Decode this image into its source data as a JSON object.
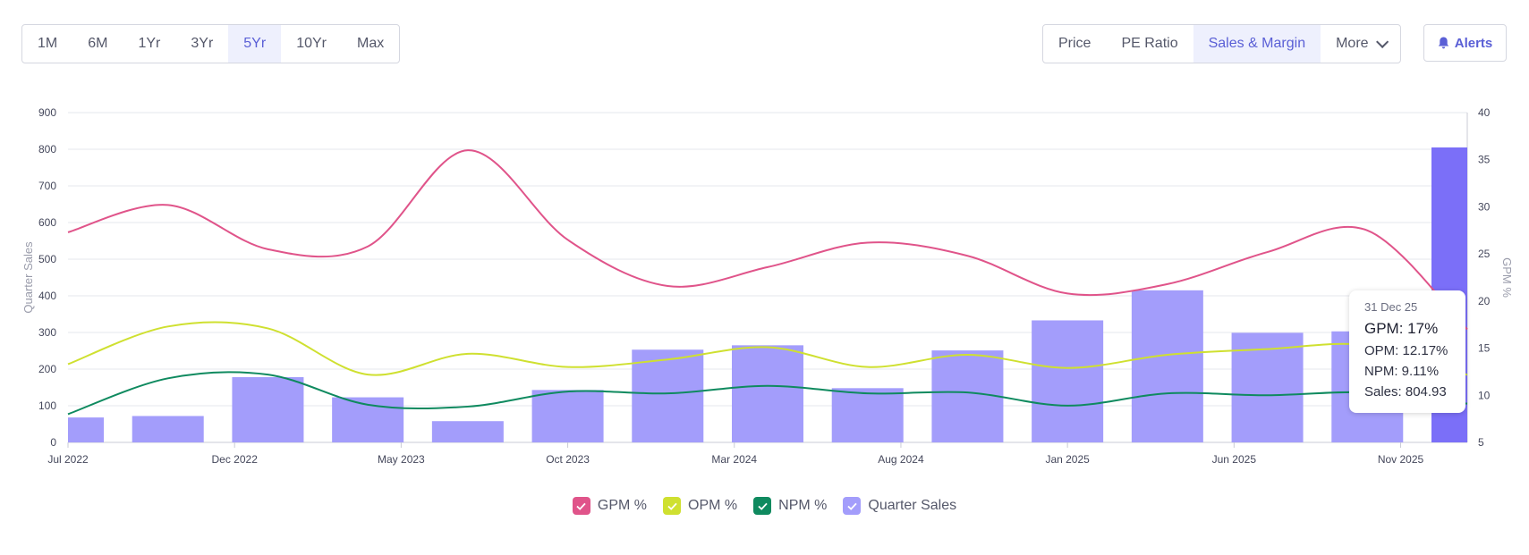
{
  "toolbar": {
    "ranges": [
      "1M",
      "6M",
      "1Yr",
      "3Yr",
      "5Yr",
      "10Yr",
      "Max"
    ],
    "active_range": "5Yr",
    "metrics": [
      "Price",
      "PE Ratio",
      "Sales & Margin"
    ],
    "active_metric": "Sales & Margin",
    "more_label": "More",
    "alerts_label": "Alerts"
  },
  "tooltip": {
    "date": "31 Dec 25",
    "gpm": "GPM: 17%",
    "opm": "OPM: 12.17%",
    "npm": "NPM: 9.11%",
    "sales": "Sales: 804.93"
  },
  "colors": {
    "gpm": "#e0548a",
    "opm": "#cfe030",
    "npm": "#0f8a5f",
    "sales": "#a39dfb",
    "sales_active": "#7b6ff8",
    "accent": "#5a5fd6"
  },
  "chart_data": {
    "type": "bar+line",
    "x_labels": [
      "Jul 2022",
      "Dec 2022",
      "May 2023",
      "Oct 2023",
      "Mar 2024",
      "Aug 2024",
      "Jan 2025",
      "Jun 2025",
      "Nov 2025"
    ],
    "x_label_positions": [
      0,
      5,
      10,
      15,
      20,
      25,
      30,
      35,
      40
    ],
    "left_axis": {
      "label": "Quarter Sales",
      "ticks": [
        0,
        100,
        200,
        300,
        400,
        500,
        600,
        700,
        800,
        900
      ],
      "range": [
        0,
        900
      ]
    },
    "right_axis": {
      "label": "GPM %",
      "ticks": [
        5,
        10,
        15,
        20,
        25,
        30,
        35,
        40
      ],
      "range": [
        5,
        40
      ]
    },
    "sales_bars": {
      "name": "Quarter Sales",
      "x": [
        0,
        3,
        6,
        9,
        12,
        15,
        18,
        21,
        24,
        27,
        30,
        33,
        36,
        39,
        42
      ],
      "values": [
        68,
        72,
        178,
        123,
        58,
        143,
        253,
        265,
        148,
        251,
        333,
        415,
        299,
        303,
        804.93
      ]
    },
    "series": [
      {
        "name": "GPM %",
        "x": [
          0,
          3,
          6,
          9,
          12,
          15,
          18,
          21,
          24,
          27,
          30,
          33,
          36,
          39,
          42
        ],
        "values": [
          27.3,
          30.2,
          25.5,
          25.8,
          36.0,
          26.5,
          21.6,
          23.6,
          26.2,
          24.8,
          20.8,
          21.8,
          25.2,
          27.5,
          17
        ]
      },
      {
        "name": "OPM %",
        "x": [
          0,
          3,
          6,
          9,
          12,
          15,
          18,
          21,
          24,
          27,
          30,
          33,
          36,
          39,
          42
        ],
        "values": [
          13.3,
          17.3,
          17.1,
          12.2,
          14.4,
          13.0,
          13.8,
          15.1,
          13.0,
          14.3,
          12.9,
          14.3,
          14.9,
          15.3,
          12.17
        ]
      },
      {
        "name": "NPM %",
        "x": [
          0,
          3,
          6,
          9,
          12,
          15,
          18,
          21,
          24,
          27,
          30,
          33,
          36,
          39,
          42
        ],
        "values": [
          8.0,
          11.8,
          12.2,
          9.0,
          8.8,
          10.4,
          10.2,
          11.0,
          10.2,
          10.3,
          8.9,
          10.2,
          10.0,
          10.3,
          9.11
        ]
      }
    ],
    "legend": [
      "GPM %",
      "OPM %",
      "NPM %",
      "Quarter Sales"
    ]
  }
}
